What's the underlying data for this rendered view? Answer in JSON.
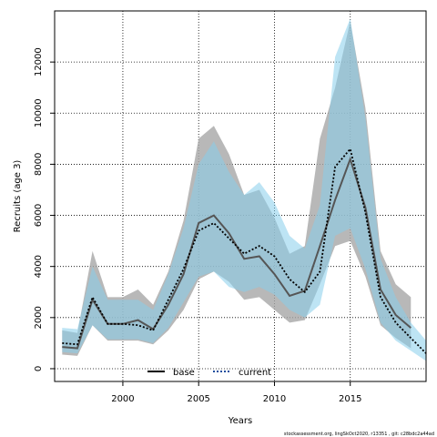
{
  "chart_data": {
    "type": "line",
    "title": "",
    "xlabel": "Years",
    "ylabel": "Recruits (age 3)",
    "xlim": [
      1995.5,
      2020
    ],
    "ylim": [
      -500,
      14000
    ],
    "x_ticks": [
      2000,
      2005,
      2010,
      2015
    ],
    "y_ticks": [
      0,
      2000,
      4000,
      6000,
      8000,
      10000,
      12000
    ],
    "grid": true,
    "legend_position": "bottom-left",
    "x": [
      1996,
      1997,
      1998,
      1999,
      2000,
      2001,
      2002,
      2003,
      2004,
      2005,
      2006,
      2007,
      2008,
      2009,
      2010,
      2011,
      2012,
      2013,
      2014,
      2015,
      2016,
      2017,
      2018,
      2019,
      2020
    ],
    "series": [
      {
        "name": "base",
        "style": "solid",
        "line_color": "#555555",
        "band_color": "#a6a6a6",
        "values": [
          850,
          800,
          2700,
          1750,
          1750,
          1900,
          1550,
          2500,
          3700,
          5700,
          6000,
          5300,
          4300,
          4400,
          3700,
          2850,
          3050,
          4800,
          6600,
          8200,
          6300,
          3100,
          2100,
          1600,
          null
        ],
        "lower": [
          550,
          500,
          1700,
          1100,
          1100,
          1100,
          950,
          1500,
          2300,
          3500,
          3800,
          3400,
          2700,
          2800,
          2300,
          1800,
          1900,
          3300,
          4800,
          5000,
          3600,
          1700,
          1200,
          800,
          null
        ],
        "upper": [
          1500,
          1400,
          4600,
          2800,
          2800,
          3100,
          2500,
          3800,
          5800,
          9000,
          9500,
          8400,
          6800,
          7000,
          5900,
          4500,
          4800,
          9000,
          11000,
          13600,
          10200,
          4600,
          3300,
          2800,
          null
        ]
      },
      {
        "name": "current",
        "style": "dotted",
        "line_color": "#000000",
        "band_color": "#87ceeb",
        "values": [
          1000,
          950,
          2800,
          1750,
          1750,
          1700,
          1500,
          2700,
          3900,
          5400,
          5700,
          5100,
          4500,
          4800,
          4400,
          3500,
          3000,
          3800,
          7900,
          8600,
          6100,
          2800,
          1800,
          1200,
          600
        ],
        "lower": [
          650,
          600,
          1700,
          1150,
          1150,
          1150,
          1000,
          1600,
          2600,
          3600,
          3800,
          3200,
          3000,
          3200,
          2900,
          2300,
          2000,
          2500,
          5200,
          5500,
          3900,
          1800,
          1100,
          700,
          300
        ],
        "upper": [
          1600,
          1550,
          4000,
          2700,
          2700,
          2700,
          2300,
          3700,
          5500,
          8000,
          8900,
          7700,
          6800,
          7300,
          6500,
          5200,
          4700,
          6400,
          12200,
          13700,
          9800,
          4300,
          2800,
          1800,
          1100
        ]
      }
    ]
  },
  "footer": "stockassessment.org, lingSkOct2020, r13351 , git: c28bdc2a44ad"
}
